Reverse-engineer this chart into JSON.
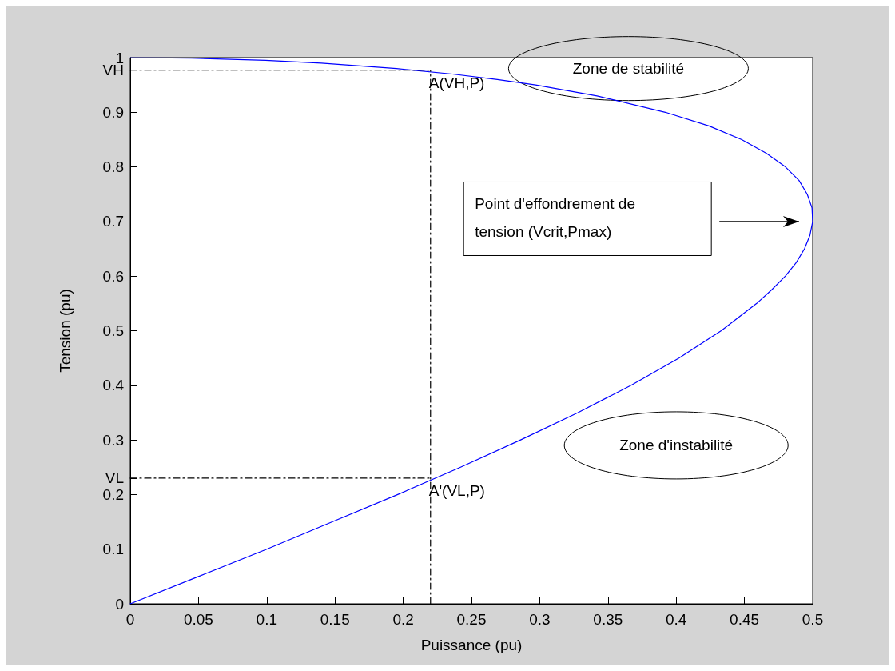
{
  "chart_data": {
    "type": "line",
    "xlabel": "Puissance (pu)",
    "ylabel": "Tension (pu)",
    "xlim": [
      0,
      0.5
    ],
    "ylim": [
      0,
      1
    ],
    "xticks": [
      0,
      0.05,
      0.1,
      0.15,
      0.2,
      0.25,
      0.3,
      0.35,
      0.4,
      0.45,
      0.5
    ],
    "yticks": [
      0,
      0.1,
      {
        "value": 0.2,
        "label": "0.2"
      },
      {
        "value": 0.23,
        "label": "VL"
      },
      0.3,
      0.4,
      0.5,
      0.6,
      0.7,
      0.8,
      0.9,
      {
        "value": 0.977,
        "label": "VH"
      },
      1
    ],
    "series": [
      {
        "color": "#0000ff",
        "x": [
          0,
          0.05,
          0.1,
          0.148,
          0.196,
          0.242,
          0.286,
          0.328,
          0.367,
          0.402,
          0.433,
          0.459,
          0.47,
          0.48,
          0.488,
          0.494,
          0.498,
          0.5,
          0.4995,
          0.496,
          0.49,
          0.48,
          0.466,
          0.448,
          0.424,
          0.392,
          0.342,
          0.297,
          0.269,
          0.236,
          0.195,
          0.14,
          0.099,
          0.045,
          0
        ],
        "values": [
          0,
          0.05,
          0.1,
          0.15,
          0.2,
          0.25,
          0.3,
          0.35,
          0.4,
          0.45,
          0.5,
          0.55,
          0.575,
          0.6,
          0.625,
          0.65,
          0.675,
          0.7,
          0.725,
          0.75,
          0.775,
          0.8,
          0.825,
          0.85,
          0.875,
          0.9,
          0.93,
          0.95,
          0.96,
          0.97,
          0.98,
          0.99,
          0.995,
          0.999,
          1
        ]
      },
      {
        "color": "#000000",
        "line_style": "dashed",
        "x": [
          0,
          0.22
        ],
        "values": [
          0.977,
          0.977
        ]
      },
      {
        "color": "#000000",
        "line_style": "dashed",
        "x": [
          0,
          0.22
        ],
        "values": [
          0.23,
          0.23
        ]
      },
      {
        "color": "#000000",
        "line_style": "dashed",
        "x": [
          0.22,
          0.22
        ],
        "values": [
          0,
          0.977
        ]
      }
    ],
    "marker": "none",
    "line_style": "solid",
    "grid": false,
    "annotations": [
      {
        "text": "A(VH,P)",
        "x": 0.22,
        "y": 0.977
      },
      {
        "text": "A'(VL,P)",
        "x": 0.22,
        "y": 0.23
      },
      "Point d'effondrement de\ntension (Vcrit,Pmax)",
      "Zone de stabilité",
      "Zone d'instabilité"
    ]
  }
}
